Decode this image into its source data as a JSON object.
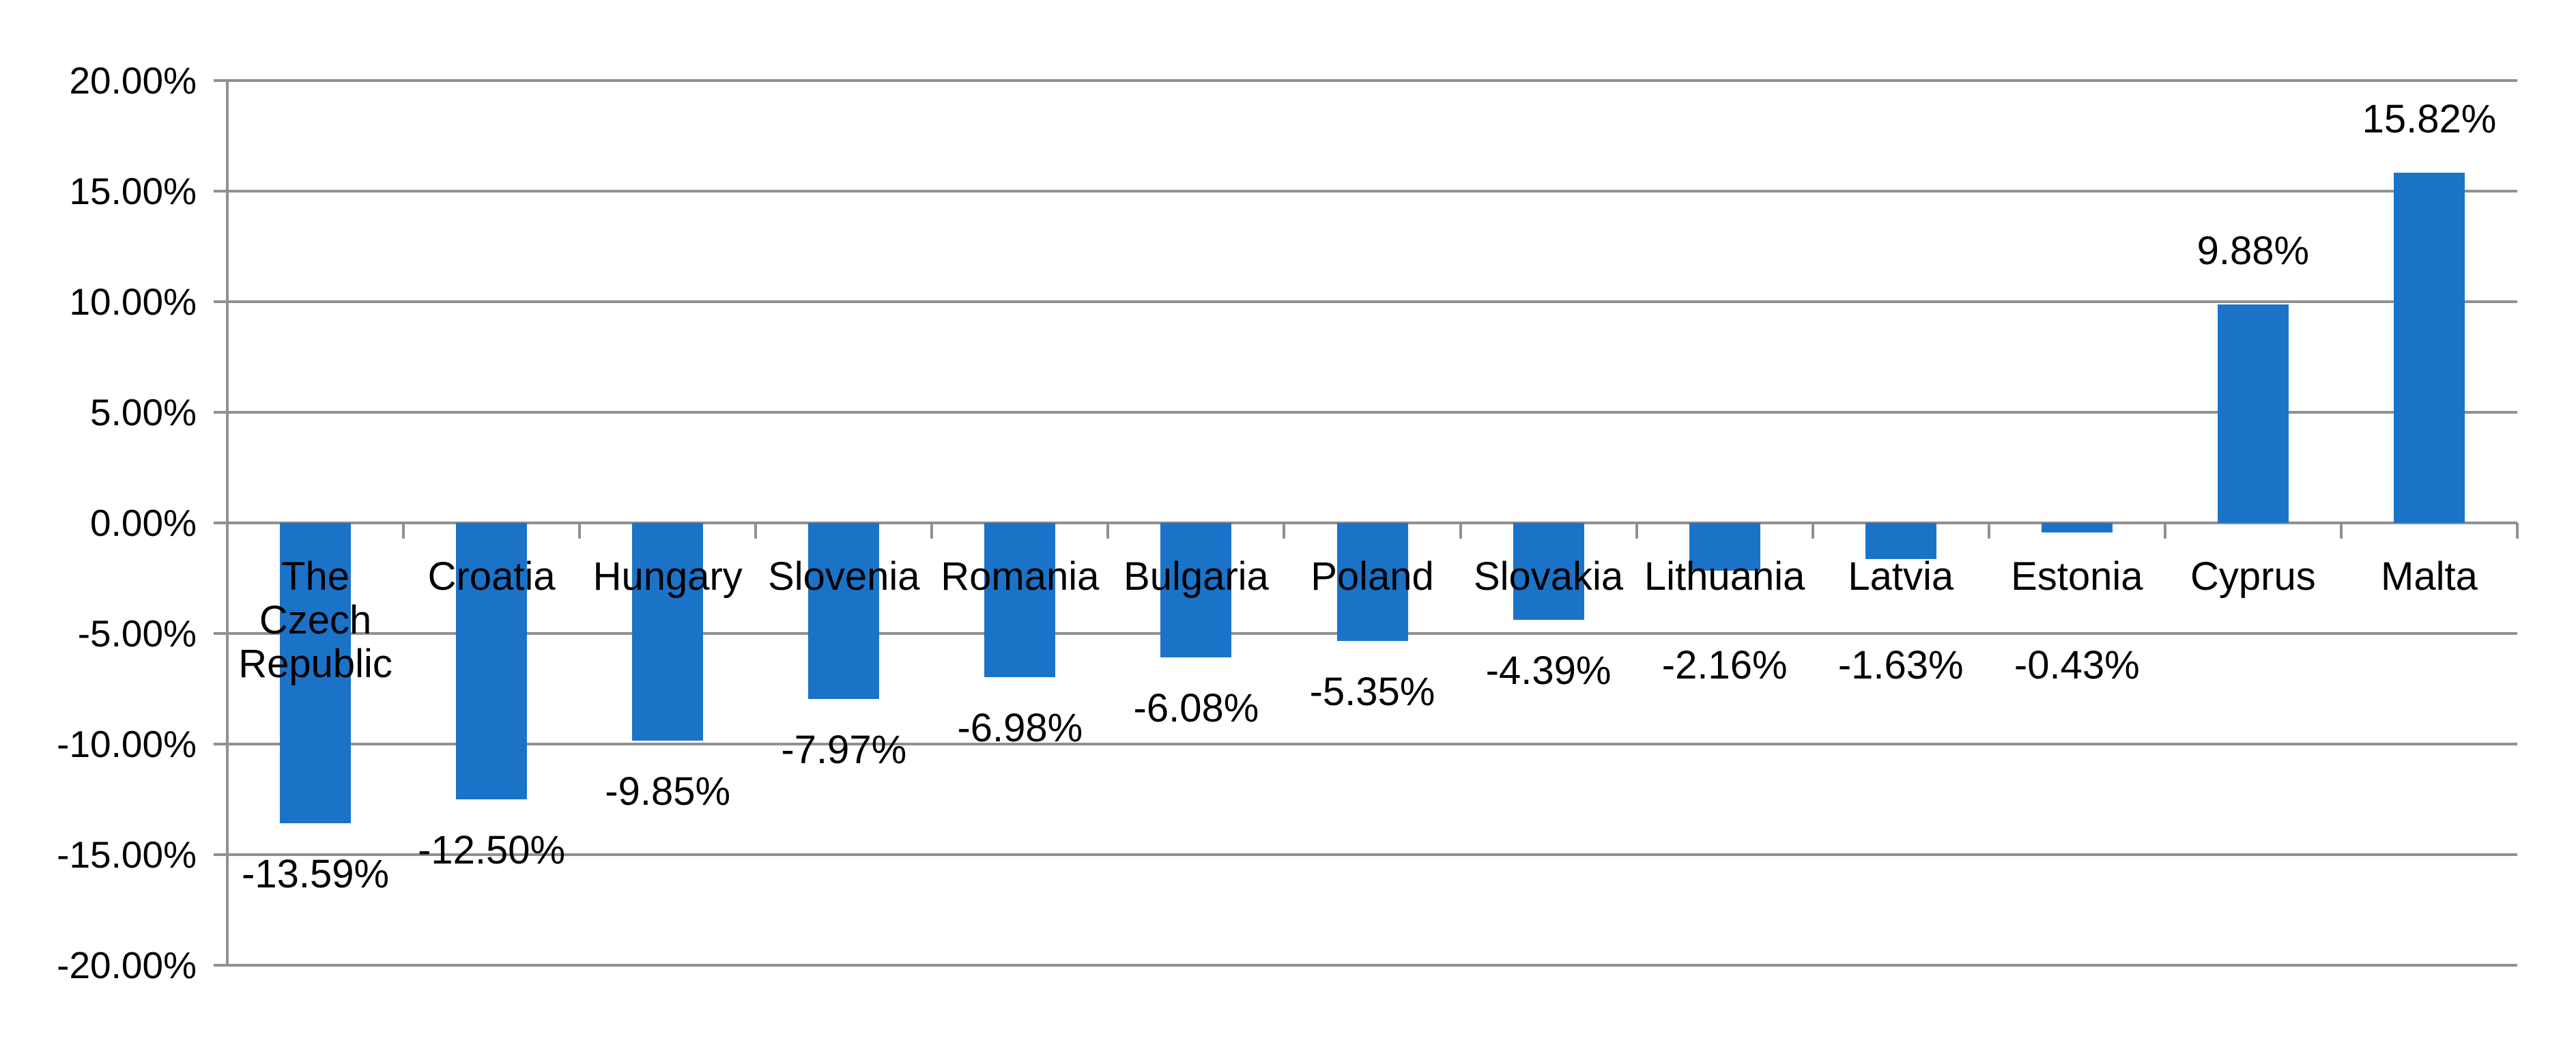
{
  "chart_data": {
    "type": "bar",
    "title": "",
    "xlabel": "",
    "ylabel": "",
    "categories": [
      "The Czech Republic",
      "Croatia",
      "Hungary",
      "Slovenia",
      "Romania",
      "Bulgaria",
      "Poland",
      "Slovakia",
      "Lithuania",
      "Latvia",
      "Estonia",
      "Cyprus",
      "Malta"
    ],
    "values": [
      -13.59,
      -12.5,
      -9.85,
      -7.97,
      -6.98,
      -6.08,
      -5.35,
      -4.39,
      -2.16,
      -1.63,
      -0.43,
      9.88,
      15.82
    ],
    "value_labels": [
      "-13.59%",
      "-12.50%",
      "-9.85%",
      "-7.97%",
      "-6.98%",
      "-6.08%",
      "-5.35%",
      "-4.39%",
      "-2.16%",
      "-1.63%",
      "-0.43%",
      "9.88%",
      "15.82%"
    ],
    "y_ticks": [
      {
        "value": 20,
        "label": "20.00%"
      },
      {
        "value": 15,
        "label": "15.00%"
      },
      {
        "value": 10,
        "label": "10.00%"
      },
      {
        "value": 5,
        "label": "5.00%"
      },
      {
        "value": 0,
        "label": "0.00%"
      },
      {
        "value": -5,
        "label": "-5.00%"
      },
      {
        "value": -10,
        "label": "-10.00%"
      },
      {
        "value": -15,
        "label": "-15.00%"
      },
      {
        "value": -20,
        "label": "-20.00%"
      }
    ],
    "ylim": [
      -20,
      20
    ],
    "gridlines": true,
    "legend": "none",
    "label_position": "outside-end"
  },
  "style": {
    "background": "#FFFFFF",
    "bar_color": "#1B73C8",
    "grid_color": "#909090",
    "axis_color": "#909090",
    "text_color": "#000000"
  }
}
